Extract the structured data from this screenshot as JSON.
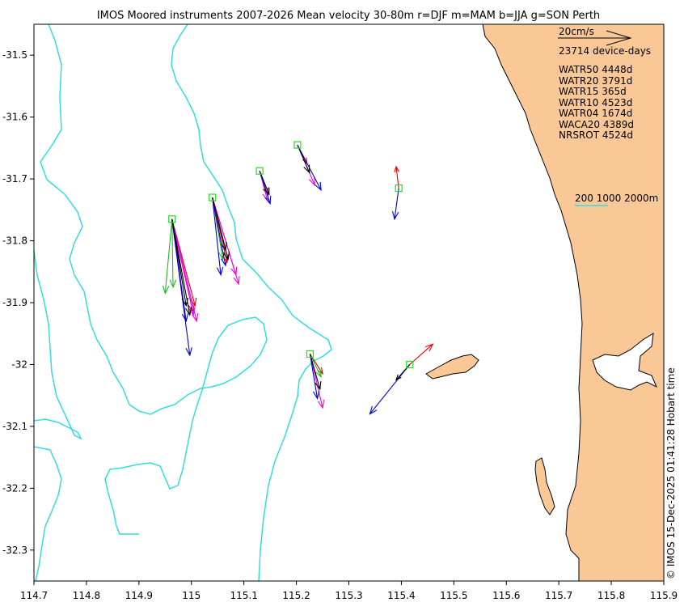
{
  "chart_data": {
    "type": "quiver-map",
    "title": "IMOS Moored instruments 2007-2026 Mean velocity 30-80m r=DJF m=MAM b=JJA g=SON Perth",
    "xlim": [
      114.7,
      115.9
    ],
    "ylim": [
      -32.35,
      -31.45
    ],
    "xticks": [
      "114.7",
      "114.8",
      "114.9",
      "115",
      "115.1",
      "115.2",
      "115.3",
      "115.4",
      "115.5",
      "115.6",
      "115.7",
      "115.8",
      "115.9"
    ],
    "yticks": [
      "-31.5",
      "-31.6",
      "-31.7",
      "-31.8",
      "-31.9",
      "-32",
      "-32.1",
      "-32.2",
      "-32.3"
    ],
    "scale_label": "20cm/s",
    "total_label": "23714 device-days",
    "isobath_label": "200 1000 2000m",
    "legend_entries": [
      "WATR50 4448d",
      "WATR20 3791d",
      "WATR15 365d",
      "WATR10 4523d",
      "WATR04 1674d",
      "WACA20 4389d",
      "NRSROT 4524d"
    ],
    "credit": "© IMOS 15-Dec-2025 01:41:28 Hobart time",
    "colors": {
      "land": "#f9c896",
      "isobath": "#33dddd",
      "site": "#22dd22",
      "DJF": "#ee0000",
      "MAM": "#ee00ee",
      "JJA": "#0000dd",
      "SON": "#22bb22",
      "annual": "#000000"
    },
    "moorings": [
      {
        "name": "WATR50",
        "lon": 114.963,
        "lat": -31.765,
        "arrows": [
          {
            "c": "SON",
            "lon": 114.95,
            "lat": -31.885
          },
          {
            "c": "SON",
            "lon": 114.965,
            "lat": -31.875
          },
          {
            "c": "JJA",
            "lon": 114.997,
            "lat": -31.985
          },
          {
            "c": "JJA",
            "lon": 114.99,
            "lat": -31.93
          },
          {
            "c": "DJF",
            "lon": 115.003,
            "lat": -31.915
          },
          {
            "c": "DJF",
            "lon": 115.007,
            "lat": -31.905
          },
          {
            "c": "MAM",
            "lon": 115.01,
            "lat": -31.93
          },
          {
            "c": "MAM",
            "lon": 115.004,
            "lat": -31.92
          },
          {
            "c": "annual",
            "lon": 114.997,
            "lat": -31.92
          },
          {
            "c": "annual",
            "lon": 114.99,
            "lat": -31.905
          }
        ]
      },
      {
        "name": "WATR20",
        "lon": 115.04,
        "lat": -31.73,
        "arrows": [
          {
            "c": "SON",
            "lon": 115.06,
            "lat": -31.83
          },
          {
            "c": "JJA",
            "lon": 115.056,
            "lat": -31.855
          },
          {
            "c": "JJA",
            "lon": 115.065,
            "lat": -31.84
          },
          {
            "c": "DJF",
            "lon": 115.068,
            "lat": -31.835
          },
          {
            "c": "MAM",
            "lon": 115.085,
            "lat": -31.855
          },
          {
            "c": "MAM",
            "lon": 115.09,
            "lat": -31.87
          },
          {
            "c": "annual",
            "lon": 115.07,
            "lat": -31.83
          },
          {
            "c": "annual",
            "lon": 115.065,
            "lat": -31.815
          }
        ]
      },
      {
        "name": "WATR15",
        "lon": 115.13,
        "lat": -31.687,
        "arrows": [
          {
            "c": "DJF",
            "lon": 115.145,
            "lat": -31.725
          },
          {
            "c": "MAM",
            "lon": 115.145,
            "lat": -31.735
          },
          {
            "c": "JJA",
            "lon": 115.15,
            "lat": -31.74
          },
          {
            "c": "annual",
            "lon": 115.148,
            "lat": -31.725
          }
        ]
      },
      {
        "name": "WATR10",
        "lon": 115.202,
        "lat": -31.645,
        "arrows": [
          {
            "c": "DJF",
            "lon": 115.22,
            "lat": -31.675
          },
          {
            "c": "MAM",
            "lon": 115.235,
            "lat": -31.71
          },
          {
            "c": "JJA",
            "lon": 115.247,
            "lat": -31.718
          },
          {
            "c": "annual",
            "lon": 115.225,
            "lat": -31.69
          }
        ]
      },
      {
        "name": "WACA20",
        "lon": 115.226,
        "lat": -31.983,
        "arrows": [
          {
            "c": "DJF",
            "lon": 115.25,
            "lat": -32.015
          },
          {
            "c": "SON",
            "lon": 115.247,
            "lat": -32.02
          },
          {
            "c": "MAM",
            "lon": 115.25,
            "lat": -32.07
          },
          {
            "c": "JJA",
            "lon": 115.24,
            "lat": -32.055
          },
          {
            "c": "annual",
            "lon": 115.245,
            "lat": -32.04
          }
        ]
      },
      {
        "name": "WATR04",
        "lon": 115.395,
        "lat": -31.715,
        "arrows": [
          {
            "c": "DJF",
            "lon": 115.39,
            "lat": -31.68
          },
          {
            "c": "JJA",
            "lon": 115.387,
            "lat": -31.765
          }
        ]
      },
      {
        "name": "NRSROT",
        "lon": 115.416,
        "lat": -32.0,
        "arrows": [
          {
            "c": "DJF",
            "lon": 115.46,
            "lat": -31.967
          },
          {
            "c": "JJA",
            "lon": 115.34,
            "lat": -32.08
          },
          {
            "c": "annual",
            "lon": 115.39,
            "lat": -32.025
          }
        ]
      }
    ]
  }
}
